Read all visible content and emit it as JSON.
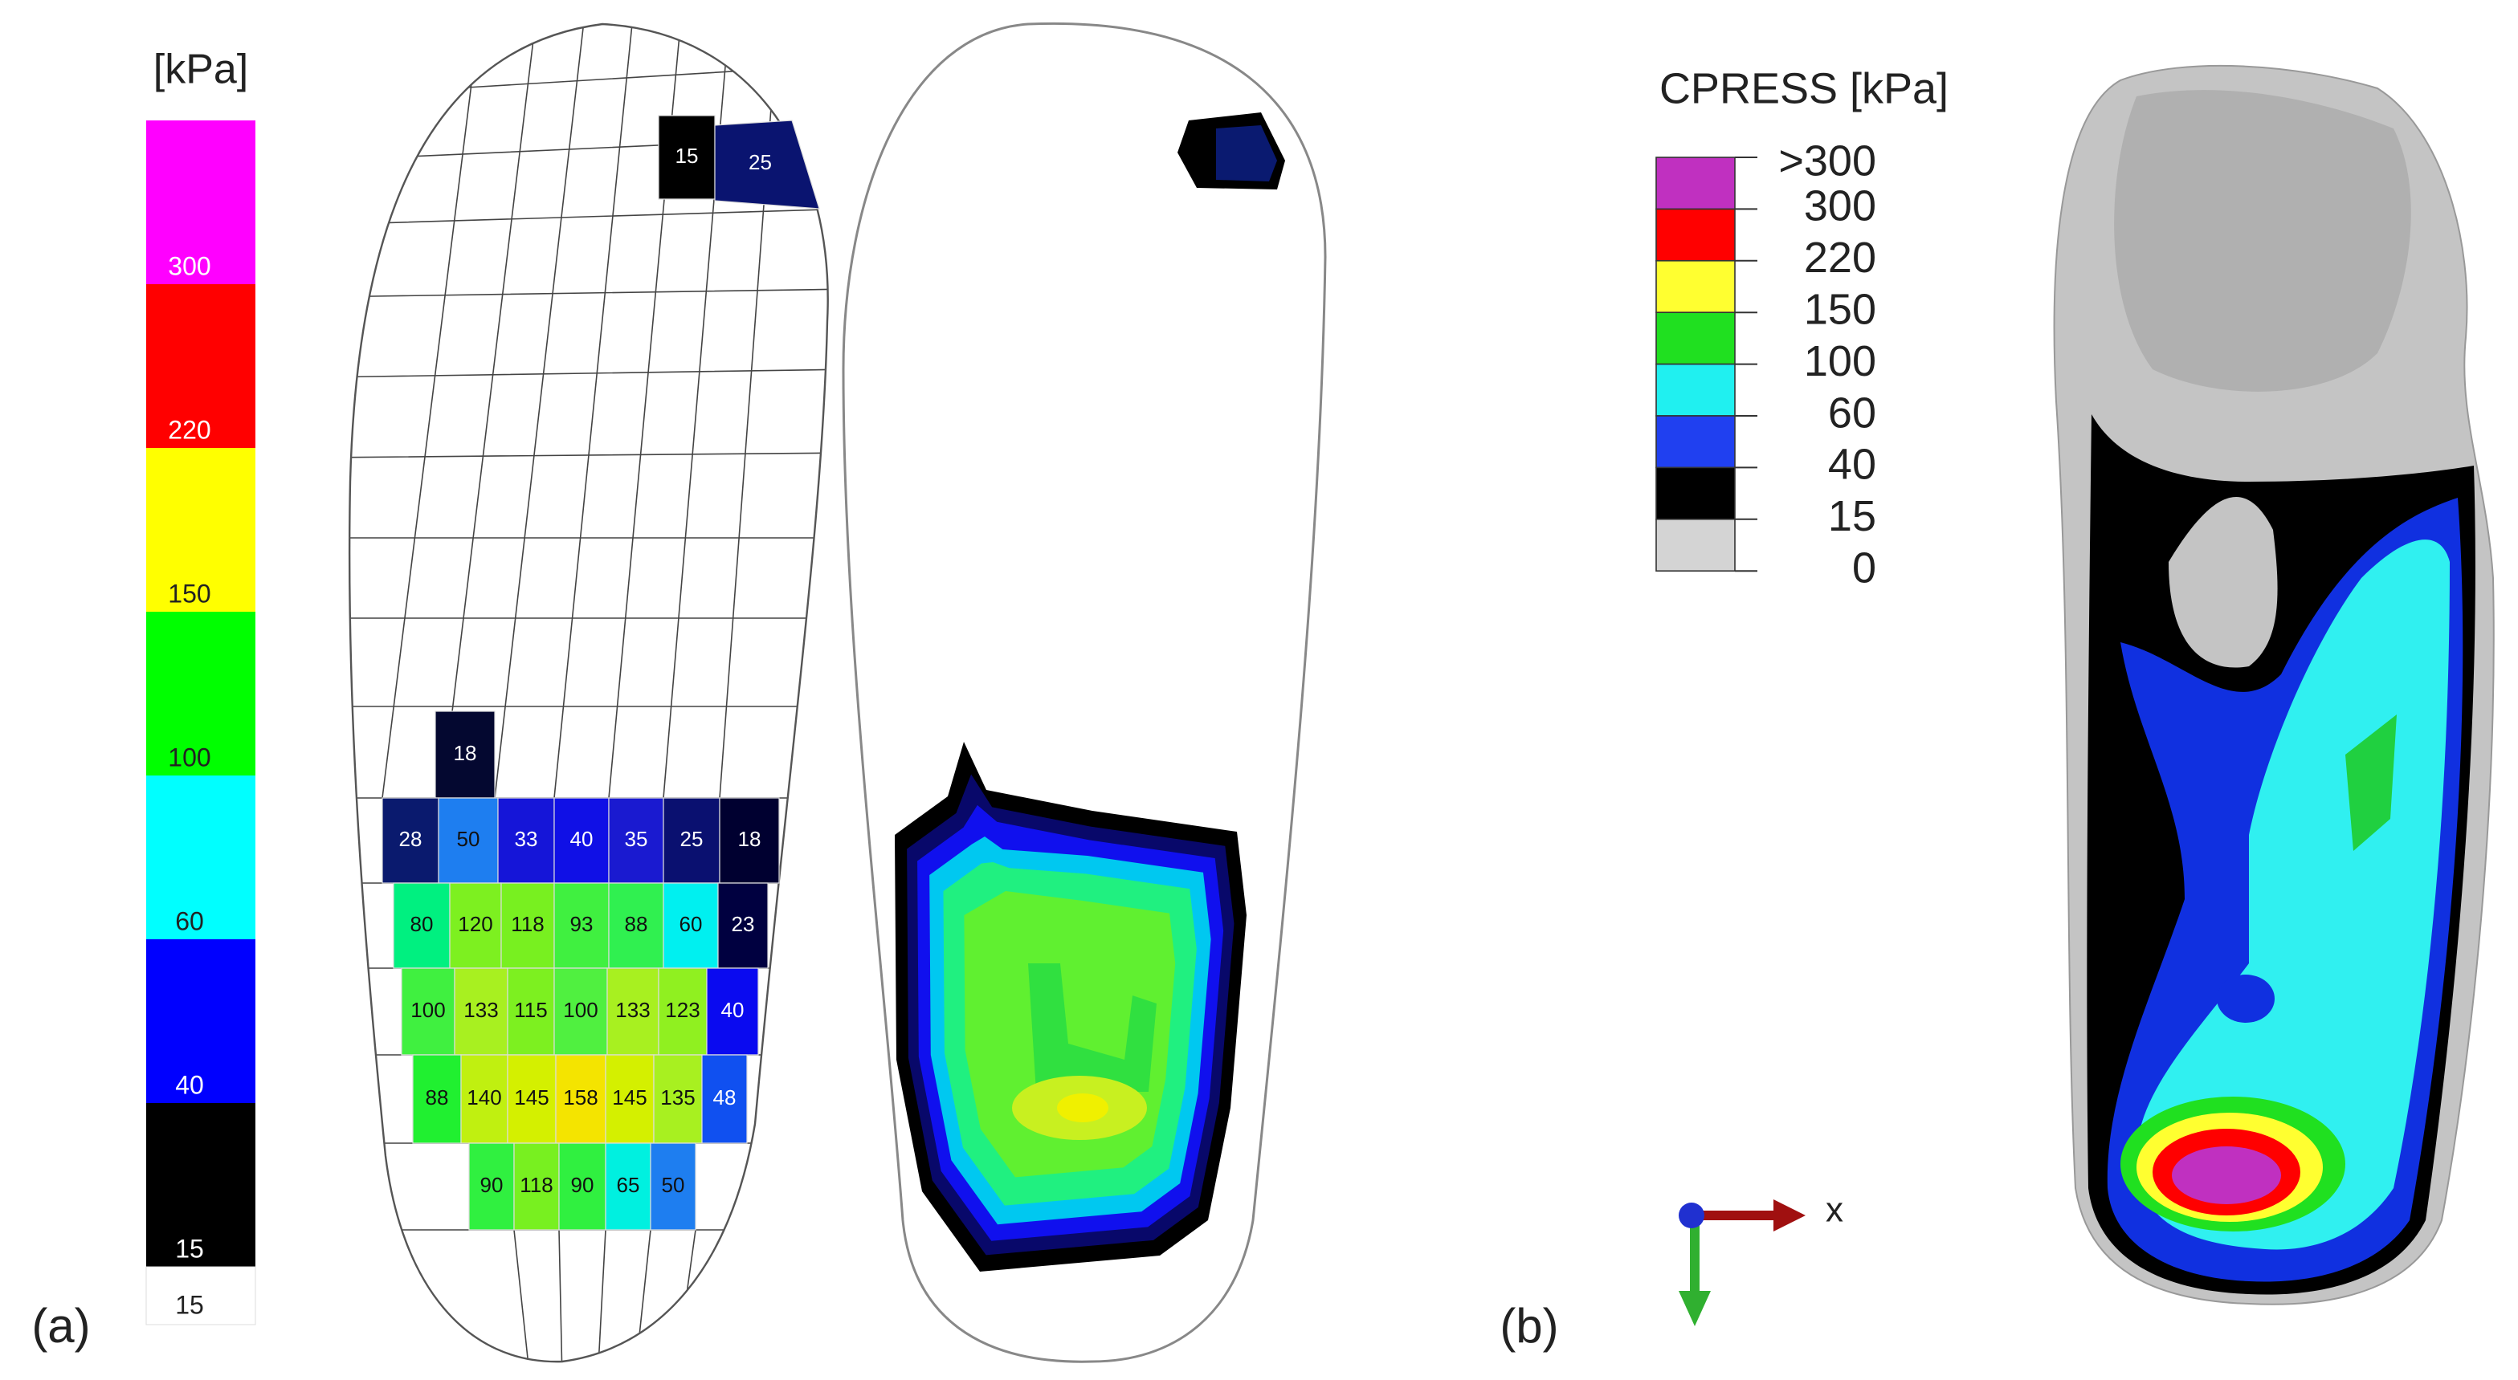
{
  "panel_a": {
    "label": "(a)",
    "colorbar": {
      "title": "[kPa]",
      "labels": [
        300,
        220,
        150,
        100,
        60,
        40,
        15
      ],
      "colors": [
        "#ff00ff",
        "#ff0000",
        "#ffff00",
        "#00ff00",
        "#00ffff",
        "#0000ff",
        "#000000"
      ],
      "extra_label": 15
    },
    "cells": [
      [
        {
          "value": 15,
          "color": "#000000"
        },
        {
          "value": 25,
          "color": "#0a1470"
        }
      ],
      [
        {
          "value": 18,
          "color": "#040830"
        }
      ],
      [
        {
          "value": 28,
          "color": "#0a1a6e"
        },
        {
          "value": 50,
          "color": "#1e7ef0"
        },
        {
          "value": 33,
          "color": "#1515d8"
        },
        {
          "value": 40,
          "color": "#1010e6"
        },
        {
          "value": 35,
          "color": "#1a1ad0"
        },
        {
          "value": 25,
          "color": "#0a1070"
        },
        {
          "value": 18,
          "color": "#000030"
        }
      ],
      [
        {
          "value": 80,
          "color": "#00f080"
        },
        {
          "value": 120,
          "color": "#7df020"
        },
        {
          "value": 118,
          "color": "#78f020"
        },
        {
          "value": 93,
          "color": "#40f040"
        },
        {
          "value": 88,
          "color": "#30f050"
        },
        {
          "value": 60,
          "color": "#00f0f0"
        },
        {
          "value": 23,
          "color": "#000040"
        }
      ],
      [
        {
          "value": 100,
          "color": "#40f040"
        },
        {
          "value": 133,
          "color": "#a8f020"
        },
        {
          "value": 115,
          "color": "#7df020"
        },
        {
          "value": 100,
          "color": "#50f040"
        },
        {
          "value": 133,
          "color": "#a8f020"
        },
        {
          "value": 123,
          "color": "#90f020"
        },
        {
          "value": 40,
          "color": "#0a0af0"
        }
      ],
      [
        {
          "value": 88,
          "color": "#20f030"
        },
        {
          "value": 140,
          "color": "#c0f010"
        },
        {
          "value": 145,
          "color": "#d4f000"
        },
        {
          "value": 158,
          "color": "#f4e400"
        },
        {
          "value": 145,
          "color": "#d4f000"
        },
        {
          "value": 135,
          "color": "#a8f020"
        },
        {
          "value": 48,
          "color": "#1050f0"
        }
      ],
      [
        {
          "value": 90,
          "color": "#30f040"
        },
        {
          "value": 118,
          "color": "#78f020"
        },
        {
          "value": 90,
          "color": "#30f040"
        },
        {
          "value": 65,
          "color": "#00f0e0"
        },
        {
          "value": 50,
          "color": "#1e7ef0"
        }
      ]
    ]
  },
  "panel_b": {
    "label": "(b)",
    "legend": {
      "title": "CPRESS [kPa]",
      "labels": [
        ">300",
        300,
        220,
        150,
        100,
        60,
        40,
        15,
        0
      ],
      "colors": [
        "#c030c0",
        "#ff0000",
        "#ffff30",
        "#20e020",
        "#20f0f0",
        "#2040f0",
        "#000000",
        "#d4d4d4"
      ]
    },
    "axis_label": "x"
  }
}
